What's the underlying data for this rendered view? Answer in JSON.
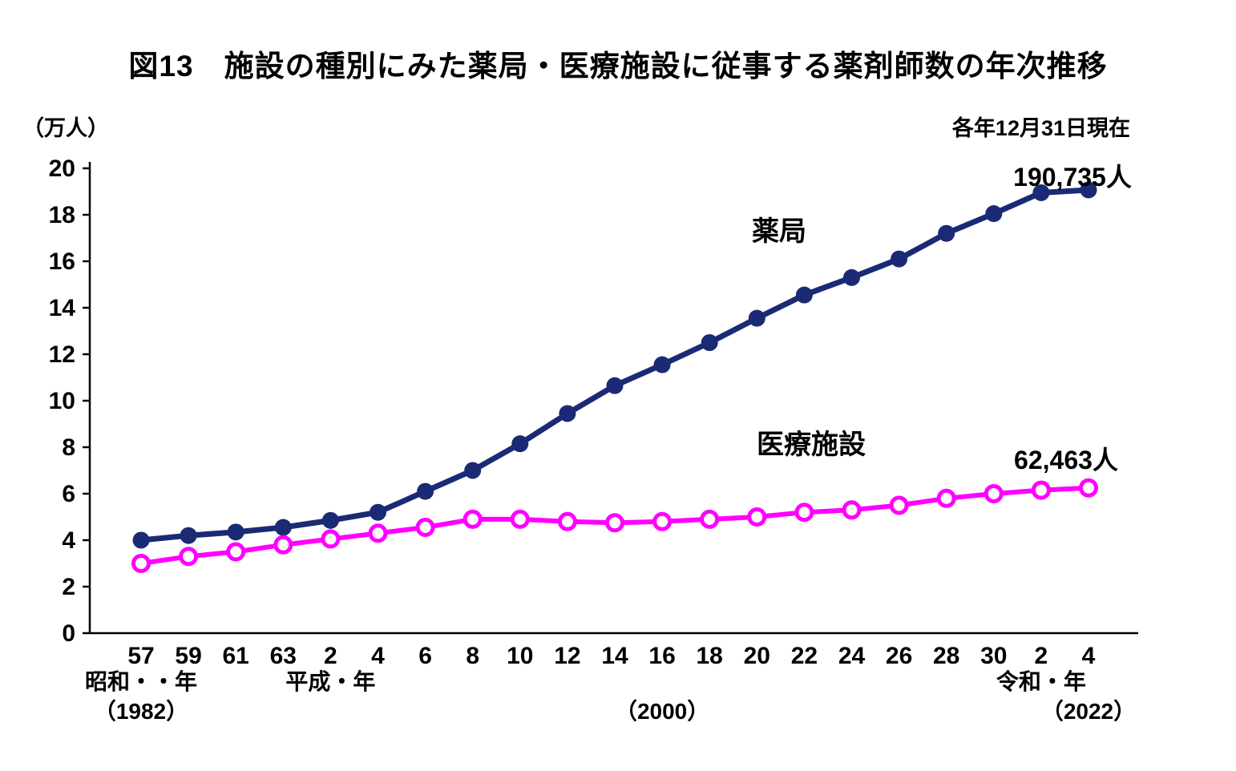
{
  "page": {
    "title": "図13　施設の種別にみた薬局・医療施設に従事する薬剤師数の年次推移",
    "unit_label": "（万人）",
    "date_note": "各年12月31日現在"
  },
  "chart_data": {
    "type": "line",
    "title": "図13　施設の種別にみた薬局・医療施設に従事する薬剤師数の年次推移",
    "ylabel": "（万人）",
    "ylim": [
      0,
      20
    ],
    "ytick_step": 2,
    "grid": false,
    "legend_position": "inline-annotations",
    "x_tick_labels": [
      "57",
      "59",
      "61",
      "63",
      "2",
      "4",
      "6",
      "8",
      "10",
      "12",
      "14",
      "16",
      "18",
      "20",
      "22",
      "24",
      "26",
      "28",
      "30",
      "2",
      "4"
    ],
    "era_labels": [
      {
        "text": "昭和・・年",
        "index": 0,
        "row": 1
      },
      {
        "text": "（1982）",
        "index": 0,
        "row": 2
      },
      {
        "text": "平成・年",
        "index": 4,
        "row": 1
      },
      {
        "text": "（2000）",
        "index": 11,
        "row": 2
      },
      {
        "text": "令和・年",
        "index": 19,
        "row": 1
      },
      {
        "text": "（2022）",
        "index": 20,
        "row": 2
      }
    ],
    "series": [
      {
        "name": "薬局",
        "color": "#1b2a75",
        "marker": "filled-circle",
        "end_value_label": "190,735人",
        "values": [
          4.0,
          4.2,
          4.35,
          4.55,
          4.85,
          5.2,
          6.1,
          7.0,
          8.15,
          9.45,
          10.65,
          11.55,
          12.5,
          13.55,
          14.55,
          15.3,
          16.1,
          17.2,
          18.05,
          18.95,
          19.07
        ]
      },
      {
        "name": "医療施設",
        "color": "#ff00ff",
        "marker": "open-circle",
        "end_value_label": "62,463人",
        "values": [
          3.0,
          3.3,
          3.5,
          3.8,
          4.05,
          4.3,
          4.55,
          4.9,
          4.9,
          4.8,
          4.75,
          4.8,
          4.9,
          5.0,
          5.2,
          5.3,
          5.5,
          5.8,
          6.0,
          6.15,
          6.25
        ]
      }
    ]
  }
}
